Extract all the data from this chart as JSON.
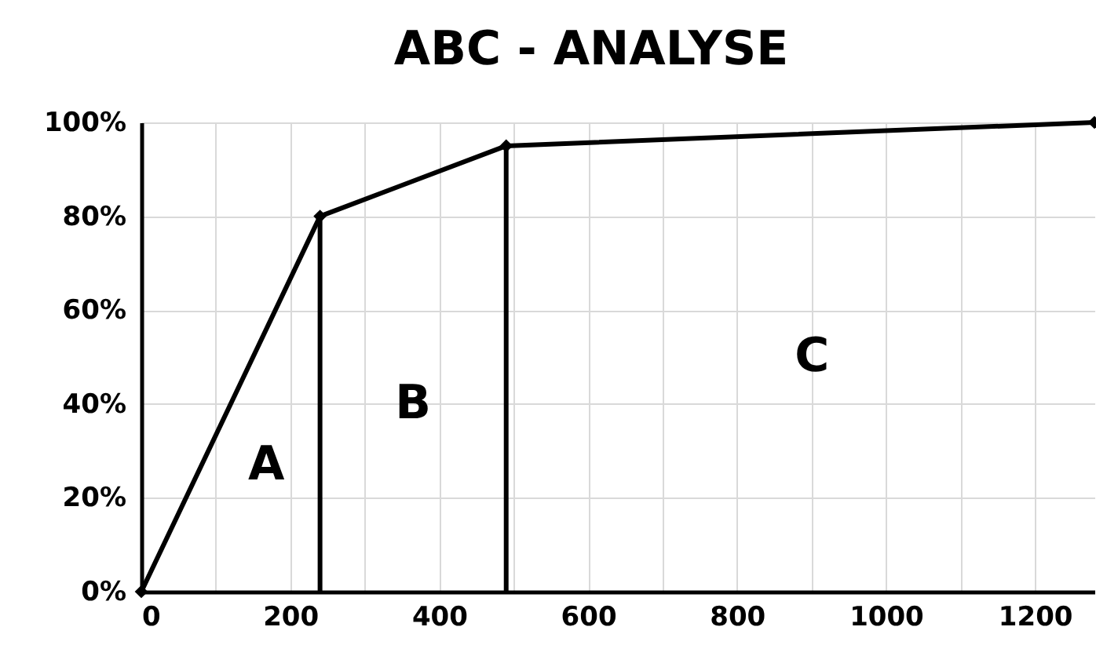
{
  "chart_data": {
    "type": "line",
    "title": "ABC - ANALYSE",
    "series": [
      {
        "color": "#000000",
        "marker": "diamond",
        "x": [
          0,
          240,
          490,
          1280
        ],
        "values": [
          0,
          80,
          95,
          100
        ]
      },
      {
        "color": "#000000",
        "marker": "none",
        "x": [
          240,
          240
        ],
        "values": [
          0,
          80
        ]
      },
      {
        "color": "#000000",
        "marker": "none",
        "x": [
          490,
          490
        ],
        "values": [
          0,
          95
        ]
      }
    ],
    "xlim": [
      0,
      1280
    ],
    "xticks": [
      0,
      {
        "value": 100,
        "label": null
      },
      200,
      {
        "value": 300,
        "label": null
      },
      400,
      {
        "value": 500,
        "label": null
      },
      600,
      {
        "value": 700,
        "label": null
      },
      800,
      {
        "value": 900,
        "label": null
      },
      1000,
      {
        "value": 1100,
        "label": null
      },
      1200
    ],
    "ylim": [
      0,
      100
    ],
    "yticks": [
      {
        "value": 0,
        "label": "0%"
      },
      {
        "value": 20,
        "label": "20%"
      },
      {
        "value": 40,
        "label": "40%"
      },
      {
        "value": 60,
        "label": "60%"
      },
      {
        "value": 80,
        "label": "80%"
      },
      {
        "value": 100,
        "label": "100%"
      }
    ],
    "grid": true,
    "annotations": [
      "A",
      "B",
      "C"
    ]
  }
}
